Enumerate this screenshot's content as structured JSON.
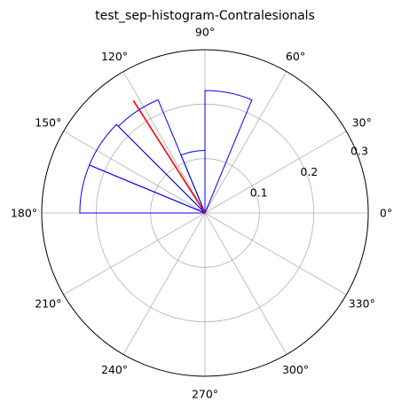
{
  "chart_data": {
    "type": "polar-histogram",
    "title": "test_sep-histogram-Contralesionals",
    "r_range": [
      0,
      0.3
    ],
    "r_ticks": [
      0.1,
      0.2,
      0.3
    ],
    "r_tick_labels": [
      "0.1",
      "0.2",
      "0.3"
    ],
    "r_tick_label_angle_deg": 22.5,
    "theta_ticks_deg": [
      0,
      30,
      60,
      90,
      120,
      150,
      180,
      210,
      240,
      270,
      300,
      330
    ],
    "theta_tick_labels": [
      "0°",
      "30°",
      "60°",
      "90°",
      "120°",
      "150°",
      "180°",
      "210°",
      "240°",
      "270°",
      "300°",
      "330°"
    ],
    "grid": true,
    "bins": [
      {
        "start_deg": 67.5,
        "end_deg": 90.0,
        "value": 0.225
      },
      {
        "start_deg": 90.0,
        "end_deg": 112.5,
        "value": 0.115
      },
      {
        "start_deg": 112.5,
        "end_deg": 135.0,
        "value": 0.225
      },
      {
        "start_deg": 135.0,
        "end_deg": 157.5,
        "value": 0.23
      },
      {
        "start_deg": 157.5,
        "end_deg": 180.0,
        "value": 0.23
      }
    ],
    "mean_vector": {
      "angle_deg": 122.5,
      "length": 0.245
    },
    "colors": {
      "bars": "#0000ff",
      "mean_line": "#ff0000",
      "grid": "#b0b0b0",
      "spine": "#000000"
    }
  }
}
